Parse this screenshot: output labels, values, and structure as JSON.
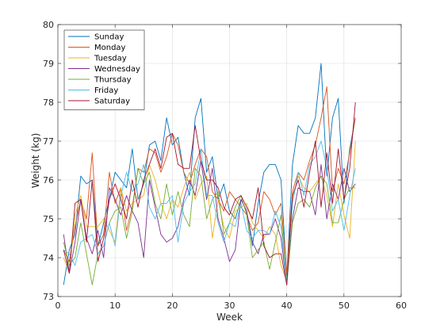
{
  "chart_data": {
    "type": "line",
    "xlabel": "Week",
    "ylabel": "Weight (kg)",
    "xlim": [
      0,
      60
    ],
    "ylim": [
      73,
      80
    ],
    "xticks": [
      0,
      10,
      20,
      30,
      40,
      50,
      60
    ],
    "yticks": [
      73,
      74,
      75,
      76,
      77,
      78,
      79,
      80
    ],
    "grid": true,
    "legend_position": "top-left",
    "x": [
      1,
      2,
      3,
      4,
      5,
      6,
      7,
      8,
      9,
      10,
      11,
      12,
      13,
      14,
      15,
      16,
      17,
      18,
      19,
      20,
      21,
      22,
      23,
      24,
      25,
      26,
      27,
      28,
      29,
      30,
      31,
      32,
      33,
      34,
      35,
      36,
      37,
      38,
      39,
      40,
      41,
      42,
      43,
      44,
      45,
      46,
      47,
      48,
      49,
      50,
      51,
      52
    ],
    "series": [
      {
        "name": "Sunday",
        "color": "#0072bd",
        "values": [
          73.3,
          74.2,
          74.6,
          76.1,
          75.9,
          76.0,
          74.3,
          74.9,
          75.5,
          76.2,
          76.0,
          75.8,
          76.8,
          75.5,
          75.9,
          76.9,
          77.0,
          76.5,
          77.6,
          76.9,
          77.1,
          76.2,
          75.6,
          77.6,
          78.1,
          76.2,
          76.6,
          75.5,
          75.9,
          75.2,
          75.0,
          75.5,
          75.2,
          74.3,
          75.4,
          76.2,
          76.4,
          76.4,
          76.0,
          73.5,
          76.4,
          77.4,
          77.2,
          77.2,
          77.6,
          79.0,
          76.1,
          77.6,
          78.1,
          75.4,
          76.8,
          77.6
        ]
      },
      {
        "name": "Monday",
        "color": "#d95319",
        "values": [
          74.2,
          73.9,
          74.8,
          75.5,
          75.0,
          76.7,
          74.3,
          74.6,
          76.2,
          75.4,
          75.8,
          74.7,
          75.3,
          76.3,
          76.2,
          76.8,
          76.7,
          76.2,
          76.6,
          77.2,
          76.9,
          76.2,
          75.9,
          76.4,
          76.8,
          76.6,
          75.7,
          75.5,
          75.2,
          75.7,
          75.5,
          75.3,
          75.1,
          74.7,
          74.9,
          75.7,
          75.5,
          75.1,
          75.4,
          73.6,
          75.7,
          76.2,
          76.0,
          76.5,
          76.9,
          77.6,
          78.4,
          75.7,
          76.3,
          75.9,
          76.7,
          77.6
        ]
      },
      {
        "name": "Tuesday",
        "color": "#edb120",
        "values": [
          74.0,
          73.6,
          75.1,
          75.6,
          74.8,
          74.8,
          74.8,
          75.0,
          74.7,
          74.4,
          75.8,
          75.2,
          75.4,
          75.5,
          75.6,
          76.4,
          76.0,
          75.4,
          75.0,
          75.5,
          75.3,
          75.8,
          76.2,
          75.5,
          75.9,
          76.1,
          74.5,
          75.5,
          74.8,
          74.5,
          75.2,
          75.3,
          75.4,
          74.9,
          74.7,
          74.5,
          74.8,
          74.6,
          73.8,
          73.4,
          75.5,
          76.1,
          75.8,
          75.7,
          75.9,
          76.1,
          75.6,
          74.8,
          75.9,
          75.1,
          74.5,
          77.0
        ]
      },
      {
        "name": "Wednesday",
        "color": "#7e2f8e",
        "values": [
          74.6,
          73.6,
          74.4,
          75.5,
          74.5,
          74.1,
          74.7,
          74.0,
          75.8,
          75.5,
          75.1,
          75.6,
          75.2,
          74.9,
          74.0,
          76.0,
          75.3,
          74.6,
          74.4,
          74.5,
          74.8,
          75.5,
          76.0,
          75.6,
          76.5,
          75.5,
          76.3,
          75.0,
          74.5,
          73.9,
          74.2,
          75.5,
          75.2,
          74.4,
          74.1,
          74.6,
          74.6,
          75.0,
          74.5,
          73.3,
          75.0,
          75.8,
          75.7,
          75.7,
          75.1,
          76.4,
          75.0,
          75.9,
          75.5,
          76.3,
          75.7,
          75.9
        ]
      },
      {
        "name": "Thursday",
        "color": "#77ac30",
        "values": [
          74.4,
          73.8,
          74.0,
          74.9,
          74.1,
          73.3,
          74.1,
          74.3,
          74.9,
          75.2,
          75.3,
          74.5,
          75.2,
          76.3,
          75.9,
          76.2,
          75.4,
          75.0,
          75.9,
          75.1,
          75.7,
          75.1,
          74.8,
          76.3,
          76.1,
          75.0,
          75.5,
          75.7,
          74.6,
          74.9,
          75.3,
          75.6,
          75.1,
          74.0,
          74.2,
          74.4,
          73.7,
          74.4,
          75.1,
          73.3,
          74.9,
          75.4,
          75.5,
          75.3,
          75.8,
          76.1,
          75.9,
          74.9,
          74.9,
          75.5,
          75.8,
          75.8
        ]
      },
      {
        "name": "Friday",
        "color": "#4dbeee",
        "values": [
          74.2,
          74.1,
          73.8,
          74.4,
          74.5,
          74.6,
          74.1,
          74.3,
          74.9,
          74.3,
          75.6,
          76.2,
          75.7,
          75.9,
          76.4,
          75.3,
          75.0,
          75.4,
          75.4,
          75.6,
          74.4,
          75.4,
          75.7,
          75.9,
          76.8,
          75.6,
          75.6,
          74.9,
          74.4,
          74.9,
          74.8,
          75.4,
          74.7,
          74.5,
          74.7,
          74.7,
          74.6,
          75.2,
          74.8,
          73.3,
          75.4,
          76.2,
          75.6,
          76.4,
          76.6,
          77.0,
          76.3,
          75.2,
          75.5,
          74.7,
          75.6,
          76.3
        ]
      },
      {
        "name": "Saturday",
        "color": "#a2142f",
        "values": [
          74.2,
          73.6,
          75.4,
          75.5,
          74.4,
          76.0,
          73.9,
          74.5,
          75.5,
          75.9,
          75.5,
          75.0,
          76.0,
          75.3,
          76.0,
          76.4,
          76.8,
          76.3,
          77.1,
          77.2,
          76.4,
          76.3,
          76.3,
          77.4,
          76.5,
          76.0,
          76.0,
          75.8,
          75.3,
          75.1,
          75.5,
          75.6,
          75.3,
          75.0,
          75.8,
          74.3,
          74.0,
          74.1,
          74.1,
          73.3,
          75.6,
          76.0,
          75.3,
          76.2,
          77.0,
          75.3,
          76.7,
          75.4,
          76.8,
          75.5,
          76.3,
          78.0
        ]
      }
    ]
  }
}
